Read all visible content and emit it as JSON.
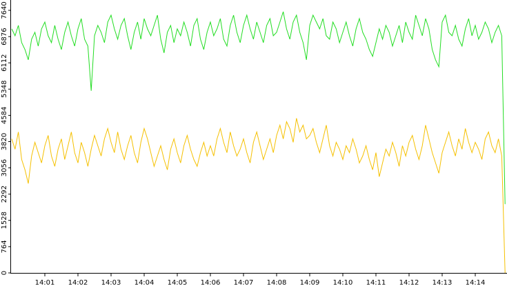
{
  "chart_data": {
    "type": "line",
    "categories": [
      null,
      null,
      null,
      null,
      null,
      null,
      null,
      null,
      null,
      null,
      "14:01",
      null,
      null,
      null,
      null,
      null,
      null,
      null,
      null,
      null,
      "14:02",
      null,
      null,
      null,
      null,
      null,
      null,
      null,
      null,
      null,
      "14:03",
      null,
      null,
      null,
      null,
      null,
      null,
      null,
      null,
      null,
      "14:04",
      null,
      null,
      null,
      null,
      null,
      null,
      null,
      null,
      null,
      "14:05",
      null,
      null,
      null,
      null,
      null,
      null,
      null,
      null,
      null,
      "14:06",
      null,
      null,
      null,
      null,
      null,
      null,
      null,
      null,
      null,
      "14:07",
      null,
      null,
      null,
      null,
      null,
      null,
      null,
      null,
      null,
      "14:08",
      null,
      null,
      null,
      null,
      null,
      null,
      null,
      null,
      null,
      "14:09",
      null,
      null,
      null,
      null,
      null,
      null,
      null,
      null,
      null,
      "14:10",
      null,
      null,
      null,
      null,
      null,
      null,
      null,
      null,
      null,
      "14:11",
      null,
      null,
      null,
      null,
      null,
      null,
      null,
      null,
      null,
      "14:12",
      null,
      null,
      null,
      null,
      null,
      null,
      null,
      null,
      null,
      "14:13",
      null,
      null,
      null,
      null,
      null,
      null,
      null,
      null,
      null,
      "14:14",
      null,
      null,
      null,
      null,
      null,
      null,
      null,
      null,
      null
    ],
    "series": [
      {
        "color": "#22dd22",
        "values": [
          7100,
          6900,
          7200,
          6700,
          6500,
          6200,
          6800,
          7000,
          6600,
          7100,
          7300,
          6900,
          6700,
          7200,
          6800,
          6500,
          7000,
          7300,
          6900,
          6600,
          7100,
          7400,
          6800,
          6600,
          5300,
          6900,
          7200,
          7000,
          6700,
          7300,
          7500,
          7100,
          6800,
          7200,
          7400,
          6900,
          6500,
          7000,
          7300,
          6800,
          7400,
          7100,
          6900,
          7200,
          7500,
          6800,
          6400,
          7000,
          7200,
          6700,
          7100,
          6900,
          7300,
          7000,
          6600,
          7200,
          7400,
          6800,
          6500,
          7000,
          7300,
          6900,
          7100,
          7400,
          6800,
          6600,
          7200,
          7500,
          7000,
          6700,
          7200,
          7500,
          7100,
          6800,
          7300,
          7000,
          6700,
          7200,
          7400,
          6900,
          7000,
          7300,
          7600,
          7100,
          6800,
          7300,
          7500,
          7000,
          6700,
          6200,
          7200,
          7500,
          7300,
          7100,
          7400,
          6900,
          6800,
          7300,
          7100,
          6700,
          7000,
          7300,
          6900,
          6600,
          7100,
          7400,
          7000,
          6800,
          6500,
          6300,
          6700,
          7100,
          6800,
          7200,
          7000,
          6600,
          6900,
          7200,
          6700,
          7300,
          7000,
          6800,
          7500,
          7200,
          6900,
          7400,
          7100,
          6500,
          6200,
          6000,
          7300,
          7500,
          7000,
          6900,
          7200,
          6800,
          6600,
          7100,
          7400,
          6900,
          7200,
          6800,
          7000,
          7300,
          7100,
          6700,
          7000,
          7200,
          6900,
          2000
        ]
      },
      {
        "color": "#f5c000",
        "values": [
          3900,
          3600,
          4100,
          3300,
          3000,
          2600,
          3400,
          3800,
          3500,
          3200,
          3700,
          4000,
          3400,
          3100,
          3600,
          3900,
          3300,
          3700,
          4100,
          3500,
          3200,
          3800,
          3500,
          3100,
          3600,
          4000,
          3700,
          3400,
          3900,
          4200,
          3800,
          3500,
          4100,
          3600,
          3300,
          3700,
          4000,
          3500,
          3200,
          3800,
          4200,
          3900,
          3500,
          3100,
          3400,
          3700,
          3300,
          3000,
          3600,
          3900,
          3500,
          3200,
          3700,
          4000,
          3600,
          3300,
          3100,
          3500,
          3800,
          3400,
          3700,
          3400,
          3900,
          4200,
          3800,
          3500,
          4100,
          3700,
          3400,
          3600,
          3900,
          3500,
          3200,
          3800,
          4100,
          3700,
          3300,
          3600,
          3900,
          3500,
          4000,
          4300,
          3900,
          4400,
          4200,
          3800,
          4500,
          4100,
          4300,
          3900,
          4000,
          4200,
          3800,
          3500,
          3900,
          4300,
          3700,
          3400,
          3800,
          3600,
          3300,
          3700,
          3500,
          3900,
          3600,
          3200,
          3400,
          3700,
          3300,
          3000,
          3500,
          2800,
          3200,
          3600,
          3400,
          3800,
          3500,
          3100,
          3700,
          3400,
          3800,
          4000,
          3600,
          3300,
          3700,
          4300,
          3900,
          3500,
          3200,
          2900,
          3500,
          3800,
          4100,
          3700,
          3400,
          3900,
          3600,
          4200,
          3800,
          3500,
          3800,
          3600,
          3300,
          3900,
          4100,
          3700,
          3500,
          3900,
          3400,
          0
        ]
      }
    ],
    "ylim": [
      0,
      7640
    ],
    "yticks": [
      0,
      764,
      1528,
      2292,
      3056,
      3820,
      4584,
      5348,
      6112,
      6876,
      7640
    ]
  }
}
